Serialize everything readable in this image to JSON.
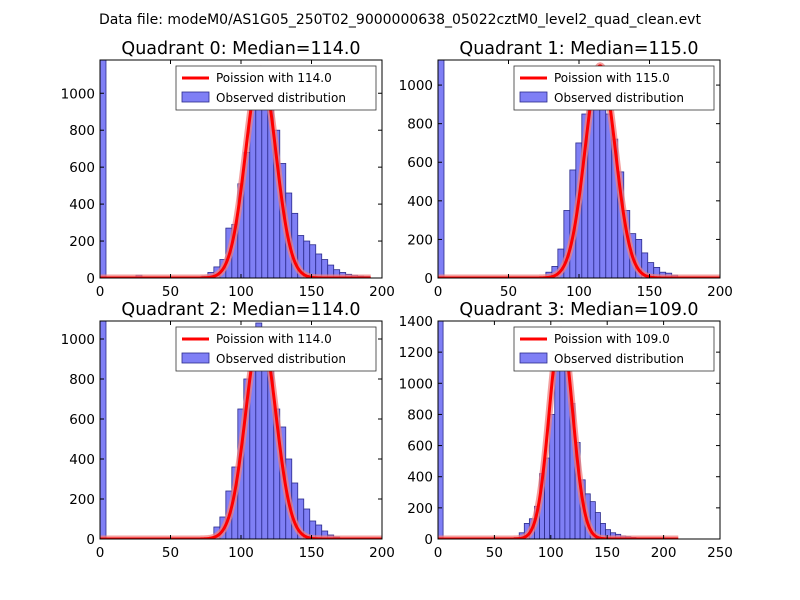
{
  "figure": {
    "suptitle": "Data file: modeM0/AS1G05_250T02_9000000638_05022cztM0_level2_quad_clean.evt",
    "colors": {
      "hist_fill": "#7f7ff5",
      "hist_edge": "#2b2b8c",
      "poisson_line": "#ff0000",
      "poisson_glow": "#f08080",
      "axis": "#000000"
    }
  },
  "chart_data": [
    {
      "type": "bar",
      "title": "Quadrant 0: Median=114.0",
      "median": 114.0,
      "xlim": [
        0,
        200
      ],
      "ylim": [
        0,
        1180
      ],
      "xticks": [
        0,
        50,
        100,
        150,
        200
      ],
      "yticks": [
        0,
        200,
        400,
        600,
        800,
        1000
      ],
      "bin_width": 4.25,
      "bins_x": [
        0,
        25.5,
        72.25,
        76.5,
        80.75,
        85,
        89.25,
        93.5,
        97.75,
        102,
        106.25,
        110.5,
        114.75,
        119,
        123.25,
        127.5,
        131.75,
        136,
        140.25,
        144.5,
        148.75,
        153,
        157.25,
        161.5,
        165.75,
        170,
        174.25,
        178.5,
        182.75,
        187
      ],
      "bins_y": [
        1180,
        15,
        10,
        30,
        60,
        100,
        270,
        290,
        510,
        680,
        950,
        1110,
        1120,
        920,
        800,
        620,
        460,
        350,
        230,
        200,
        180,
        130,
        100,
        70,
        45,
        30,
        20,
        15,
        10,
        8
      ],
      "legend": [
        {
          "label": "Poission with 114.0",
          "kind": "line"
        },
        {
          "label": "Observed distribution",
          "kind": "patch"
        }
      ],
      "poisson_mean": 114.0,
      "poisson_peak": 1130,
      "poisson_range": [
        0,
        192
      ]
    },
    {
      "type": "bar",
      "title": "Quadrant 1: Median=115.0",
      "median": 115.0,
      "xlim": [
        0,
        200
      ],
      "ylim": [
        0,
        1130
      ],
      "xticks": [
        0,
        50,
        100,
        150,
        200
      ],
      "yticks": [
        0,
        200,
        400,
        600,
        800,
        1000
      ],
      "bin_width": 4.25,
      "bins_x": [
        0,
        76.5,
        80.75,
        85,
        89.25,
        93.5,
        97.75,
        102,
        106.25,
        110.5,
        114.75,
        119,
        123.25,
        127.5,
        131.75,
        136,
        140.25,
        144.5,
        148.75,
        153,
        157.25,
        161.5,
        165.75
      ],
      "bins_y": [
        1130,
        30,
        60,
        150,
        350,
        560,
        700,
        850,
        1000,
        1080,
        1000,
        850,
        720,
        550,
        350,
        230,
        200,
        130,
        80,
        55,
        30,
        25,
        15
      ],
      "legend": [
        {
          "label": "Poission with 115.0",
          "kind": "line"
        },
        {
          "label": "Observed distribution",
          "kind": "patch"
        }
      ],
      "poisson_mean": 115.0,
      "poisson_peak": 1100,
      "poisson_range": [
        0,
        200
      ]
    },
    {
      "type": "bar",
      "title": "Quadrant 2: Median=114.0",
      "median": 114.0,
      "xlim": [
        0,
        200
      ],
      "ylim": [
        0,
        1090
      ],
      "xticks": [
        0,
        50,
        100,
        150,
        200
      ],
      "yticks": [
        0,
        200,
        400,
        600,
        800,
        1000
      ],
      "bin_width": 4.25,
      "bins_x": [
        0,
        80.75,
        85,
        89.25,
        93.5,
        97.75,
        102,
        106.25,
        110.5,
        114.75,
        119,
        123.25,
        127.5,
        131.75,
        136,
        140.25,
        144.5,
        148.75,
        153,
        157.25,
        161.5,
        165.75,
        170
      ],
      "bins_y": [
        1090,
        60,
        110,
        240,
        360,
        650,
        800,
        1000,
        1080,
        1040,
        850,
        650,
        560,
        400,
        280,
        200,
        150,
        90,
        70,
        40,
        20,
        10,
        5
      ],
      "legend": [
        {
          "label": "Poission with 114.0",
          "kind": "line"
        },
        {
          "label": "Observed distribution",
          "kind": "patch"
        }
      ],
      "poisson_mean": 114.0,
      "poisson_peak": 1040,
      "poisson_range": [
        0,
        200
      ]
    },
    {
      "type": "bar",
      "title": "Quadrant 3: Median=109.0",
      "median": 109.0,
      "xlim": [
        0,
        250
      ],
      "ylim": [
        0,
        1400
      ],
      "xticks": [
        0,
        50,
        100,
        150,
        200,
        250
      ],
      "yticks": [
        0,
        200,
        400,
        600,
        800,
        1000,
        1200,
        1400
      ],
      "bin_width": 4.5,
      "bins_x": [
        0,
        67.5,
        72,
        76.5,
        81,
        85.5,
        90,
        94.5,
        99,
        103.5,
        108,
        112.5,
        117,
        121.5,
        126,
        130.5,
        135,
        139.5,
        144,
        148.5,
        153,
        157.5,
        162,
        166.5,
        171
      ],
      "bins_y": [
        1400,
        10,
        40,
        100,
        130,
        210,
        420,
        520,
        800,
        1100,
        1300,
        1260,
        870,
        620,
        380,
        290,
        240,
        170,
        100,
        60,
        40,
        30,
        20,
        15,
        10
      ],
      "legend": [
        {
          "label": "Poission with 109.0",
          "kind": "line"
        },
        {
          "label": "Observed distribution",
          "kind": "patch"
        }
      ],
      "poisson_mean": 109.0,
      "poisson_peak": 1340,
      "poisson_range": [
        0,
        213
      ]
    }
  ]
}
